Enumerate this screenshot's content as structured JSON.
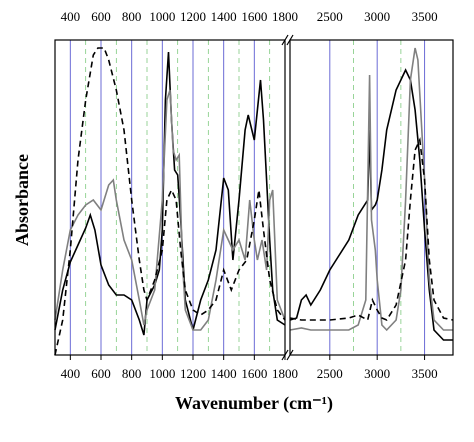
{
  "chart_data": [
    {
      "type": "line",
      "xlabel": "Wavenumber (cm⁻¹)",
      "ylabel": "Absorbance",
      "xlim": [
        300,
        1800
      ],
      "ylim": [
        0,
        315
      ],
      "xticks": [
        400,
        600,
        800,
        1000,
        1200,
        1400,
        1600,
        1800
      ],
      "grid": true,
      "series": [
        {
          "color": "#000000",
          "dash": false,
          "x": [
            300,
            350,
            400,
            450,
            500,
            530,
            560,
            600,
            650,
            700,
            750,
            800,
            850,
            880,
            900,
            950,
            980,
            1000,
            1020,
            1040,
            1060,
            1080,
            1100,
            1120,
            1150,
            1200,
            1250,
            1300,
            1350,
            1400,
            1430,
            1460,
            1500,
            1540,
            1560,
            1600,
            1620,
            1640,
            1660,
            1700,
            1720,
            1750,
            1800
          ],
          "values": [
            25,
            65,
            93,
            110,
            127,
            140,
            125,
            90,
            70,
            60,
            60,
            55,
            35,
            20,
            55,
            70,
            85,
            125,
            255,
            303,
            235,
            185,
            180,
            135,
            55,
            25,
            55,
            75,
            105,
            177,
            165,
            95,
            155,
            225,
            240,
            215,
            245,
            275,
            235,
            115,
            65,
            35,
            30
          ]
        },
        {
          "color": "#808080",
          "dash": false,
          "x": [
            300,
            350,
            400,
            450,
            500,
            550,
            600,
            650,
            680,
            700,
            750,
            800,
            850,
            880,
            900,
            950,
            1000,
            1030,
            1050,
            1070,
            1090,
            1110,
            1130,
            1150,
            1200,
            1250,
            1300,
            1350,
            1400,
            1430,
            1460,
            1500,
            1540,
            1570,
            1600,
            1620,
            1650,
            1680,
            1700,
            1720,
            1750,
            1800
          ],
          "values": [
            35,
            85,
            125,
            140,
            150,
            155,
            145,
            170,
            175,
            155,
            115,
            95,
            55,
            30,
            45,
            65,
            155,
            255,
            265,
            205,
            195,
            200,
            95,
            45,
            25,
            25,
            35,
            75,
            125,
            115,
            105,
            115,
            95,
            155,
            115,
            95,
            115,
            85,
            155,
            165,
            55,
            35
          ]
        },
        {
          "color": "#000000",
          "dash": true,
          "x": [
            300,
            350,
            400,
            450,
            500,
            550,
            580,
            620,
            650,
            700,
            750,
            800,
            850,
            880,
            900,
            950,
            1000,
            1030,
            1060,
            1090,
            1120,
            1150,
            1200,
            1250,
            1300,
            1350,
            1400,
            1450,
            1500,
            1550,
            1600,
            1630,
            1660,
            1700,
            1750,
            1800
          ],
          "values": [
            0,
            35,
            105,
            195,
            255,
            300,
            307,
            307,
            295,
            265,
            225,
            155,
            95,
            65,
            55,
            75,
            105,
            155,
            165,
            155,
            105,
            65,
            45,
            40,
            45,
            55,
            85,
            65,
            85,
            95,
            135,
            165,
            125,
            75,
            45,
            35
          ]
        }
      ]
    },
    {
      "type": "line",
      "xlim": [
        2080,
        3800
      ],
      "ylim": [
        0,
        315
      ],
      "xticks": [
        2500,
        3000,
        3500
      ],
      "grid": true,
      "series": [
        {
          "color": "#000000",
          "dash": false,
          "x": [
            2080,
            2150,
            2200,
            2250,
            2300,
            2400,
            2500,
            2600,
            2700,
            2800,
            2900,
            2920,
            2940,
            2980,
            3000,
            3050,
            3100,
            3200,
            3300,
            3350,
            3400,
            3450,
            3500,
            3550,
            3600,
            3700,
            3800
          ],
          "values": [
            35,
            37,
            55,
            60,
            50,
            65,
            85,
            100,
            115,
            140,
            155,
            225,
            145,
            150,
            155,
            185,
            225,
            265,
            285,
            275,
            245,
            195,
            125,
            65,
            25,
            15,
            15
          ]
        },
        {
          "color": "#808080",
          "dash": false,
          "x": [
            2080,
            2200,
            2300,
            2500,
            2700,
            2800,
            2880,
            2920,
            2940,
            2980,
            3000,
            3050,
            3100,
            3200,
            3250,
            3300,
            3350,
            3400,
            3430,
            3500,
            3550,
            3600,
            3700,
            3800
          ],
          "values": [
            25,
            27,
            25,
            25,
            25,
            30,
            55,
            280,
            135,
            105,
            75,
            30,
            25,
            35,
            65,
            155,
            275,
            307,
            295,
            175,
            75,
            35,
            25,
            25
          ]
        },
        {
          "color": "#000000",
          "dash": true,
          "x": [
            2080,
            2200,
            2500,
            2700,
            2800,
            2900,
            2950,
            3000,
            3050,
            3100,
            3200,
            3300,
            3350,
            3400,
            3450,
            3500,
            3550,
            3600,
            3700,
            3800
          ],
          "values": [
            37,
            35,
            35,
            37,
            40,
            35,
            55,
            45,
            37,
            35,
            50,
            95,
            155,
            205,
            215,
            175,
            95,
            55,
            37,
            35
          ]
        }
      ]
    }
  ]
}
